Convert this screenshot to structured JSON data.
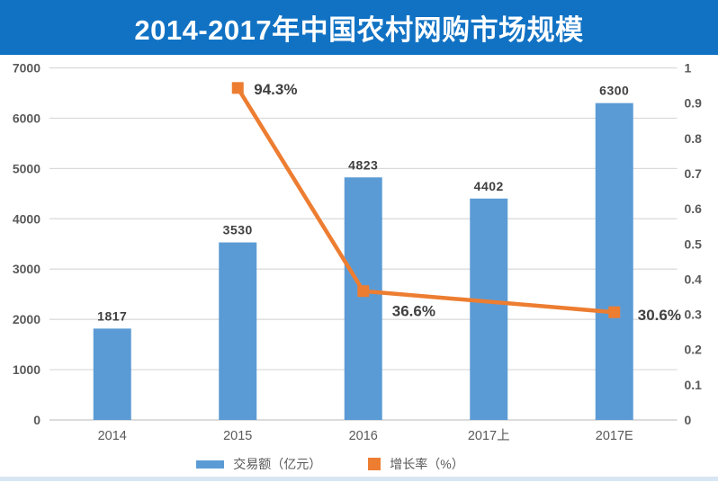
{
  "header": {
    "title": "2014-2017年中国农村网购市场规模"
  },
  "colors": {
    "banner_bg": "#1172C4",
    "bar": "#5B9BD5",
    "line": "#ED7D31",
    "gridline": "#D9D9D9",
    "baseline": "#C6C6C6",
    "axis_text": "#595959",
    "data_label_text": "#3F3F3F",
    "bottom_strip": "#D8E6F3"
  },
  "chart_data": {
    "type": "bar",
    "subtype": "combo-bar-line",
    "title": "2014-2017年中国农村网购市场规模",
    "categories": [
      "2014",
      "2015",
      "2016",
      "2017上",
      "2017E"
    ],
    "series": [
      {
        "name": "交易额（亿元）",
        "type": "bar",
        "axis": "left",
        "color": "#5B9BD5",
        "values": [
          1817,
          3530,
          4823,
          4402,
          6300
        ],
        "labels": [
          "1817",
          "3530",
          "4823",
          "4402",
          "6300"
        ]
      },
      {
        "name": "增长率（%）",
        "type": "line",
        "axis": "right",
        "color": "#ED7D31",
        "values": [
          null,
          0.943,
          0.366,
          null,
          0.306
        ],
        "labels": [
          null,
          "94.3%",
          "36.6%",
          null,
          "30.6%"
        ]
      }
    ],
    "left_axis": {
      "min": 0,
      "max": 7000,
      "step": 1000
    },
    "right_axis": {
      "min": 0,
      "max": 1,
      "step": 0.1
    },
    "grid": true,
    "legend_position": "bottom",
    "xlabel": "",
    "ylabel_left": "",
    "ylabel_right": ""
  }
}
